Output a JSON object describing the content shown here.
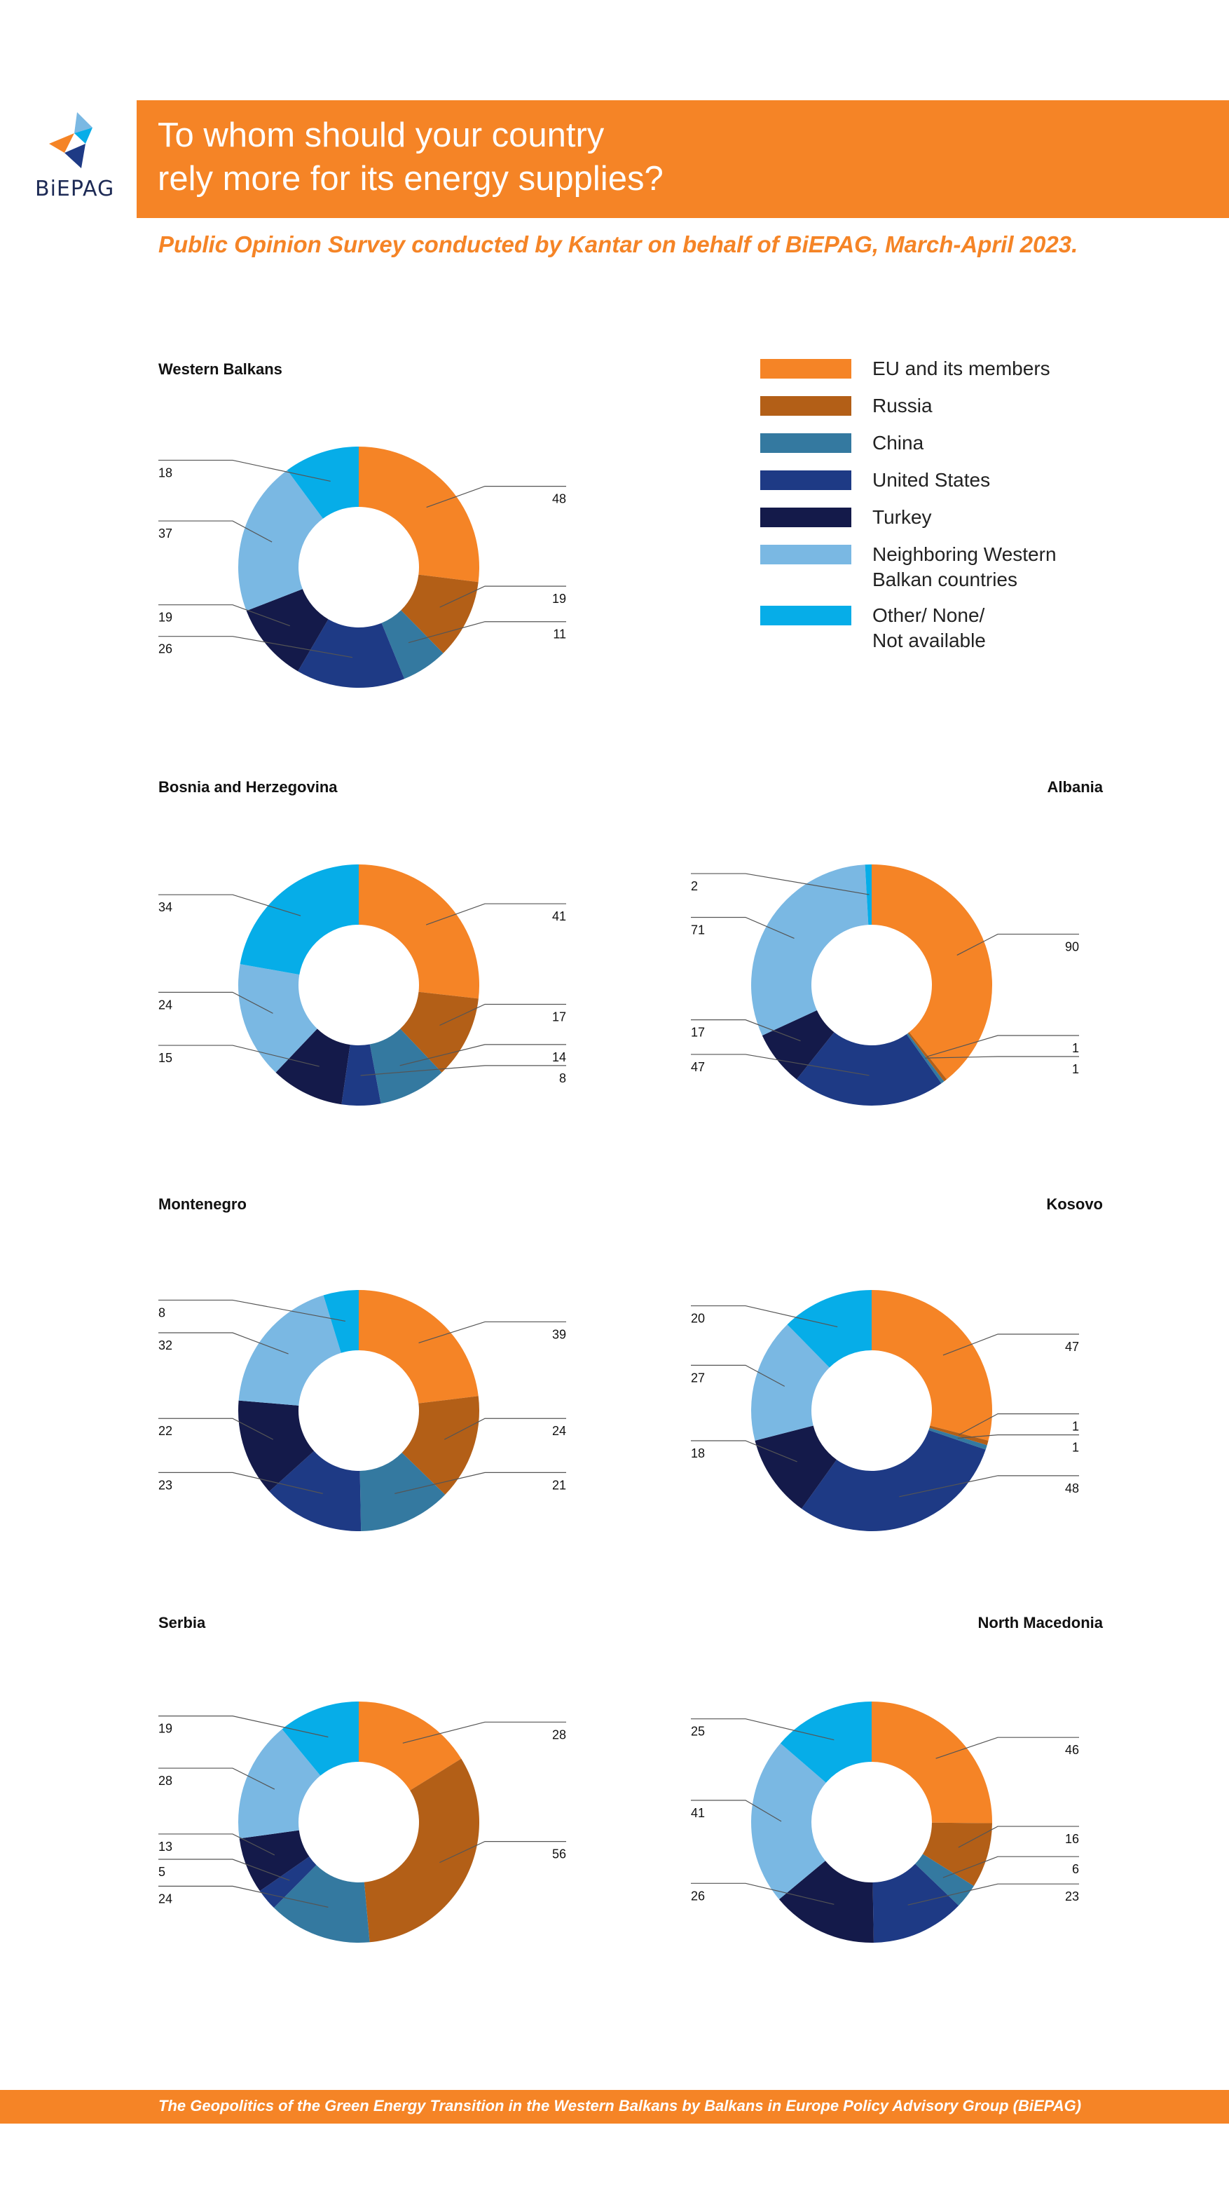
{
  "header": {
    "logo_text": "BiEPAG",
    "title_lines": [
      "To whom should your country",
      "rely more for its energy supplies?"
    ],
    "subtitle": "Public Opinion Survey conducted by Kantar on behalf of BiEPAG, March-April 2023."
  },
  "footer": {
    "text": "The Geopolitics of the Green Energy Transition in the Western Balkans by Balkans in Europe Policy Advisory Group (BiEPAG)"
  },
  "colors": {
    "accent": "#f58426",
    "eu": "#f58426",
    "russia": "#b35f17",
    "china": "#3479a0",
    "us": "#1e3a85",
    "turkey": "#141a4a",
    "neighbors": "#7ab8e3",
    "other": "#06ade8"
  },
  "legend": [
    {
      "label": "EU and its members",
      "color": "#f58426"
    },
    {
      "label": "Russia",
      "color": "#b35f17"
    },
    {
      "label": "China",
      "color": "#3479a0"
    },
    {
      "label": "United States",
      "color": "#1e3a85"
    },
    {
      "label": "Turkey",
      "color": "#141a4a"
    },
    {
      "label": "Neighboring Western Balkan countries",
      "color": "#7ab8e3"
    },
    {
      "label": "Other/ None/ Not available",
      "color": "#06ade8"
    }
  ],
  "chart_data": [
    {
      "type": "pie",
      "title": "Western Balkans",
      "categories": [
        "EU and its members",
        "Russia",
        "China",
        "United States",
        "Turkey",
        "Neighboring Western Balkan countries",
        "Other/ None/ Not available"
      ],
      "values": [
        48,
        19,
        11,
        26,
        19,
        37,
        18
      ]
    },
    {
      "type": "pie",
      "title": "Bosnia and Herzegovina",
      "categories": [
        "EU and its members",
        "Russia",
        "China",
        "United States",
        "Turkey",
        "Neighboring Western Balkan countries",
        "Other/ None/ Not available"
      ],
      "values": [
        41,
        17,
        14,
        8,
        15,
        24,
        34
      ]
    },
    {
      "type": "pie",
      "title": "Albania",
      "categories": [
        "EU and its members",
        "Russia",
        "China",
        "United States",
        "Turkey",
        "Neighboring Western Balkan countries",
        "Other/ None/ Not available"
      ],
      "values": [
        90,
        1,
        1,
        47,
        17,
        71,
        2
      ]
    },
    {
      "type": "pie",
      "title": "Montenegro",
      "categories": [
        "EU and its members",
        "Russia",
        "China",
        "United States",
        "Turkey",
        "Neighboring Western Balkan countries",
        "Other/ None/ Not available"
      ],
      "values": [
        39,
        24,
        21,
        23,
        22,
        32,
        8
      ]
    },
    {
      "type": "pie",
      "title": "Kosovo",
      "categories": [
        "EU and its members",
        "Russia",
        "China",
        "United States",
        "Turkey",
        "Neighboring Western Balkan countries",
        "Other/ None/ Not available"
      ],
      "values": [
        47,
        1,
        1,
        48,
        18,
        27,
        20
      ]
    },
    {
      "type": "pie",
      "title": "Serbia",
      "categories": [
        "EU and its members",
        "Russia",
        "China",
        "United States",
        "Turkey",
        "Neighboring Western Balkan countries",
        "Other/ None/ Not available"
      ],
      "values": [
        28,
        56,
        24,
        5,
        13,
        28,
        19
      ]
    },
    {
      "type": "pie",
      "title": "North Macedonia",
      "categories": [
        "EU and its members",
        "Russia",
        "China",
        "United States",
        "Turkey",
        "Neighboring Western Balkan countries",
        "Other/ None/ Not available"
      ],
      "values": [
        46,
        16,
        6,
        23,
        26,
        41,
        25
      ]
    }
  ]
}
